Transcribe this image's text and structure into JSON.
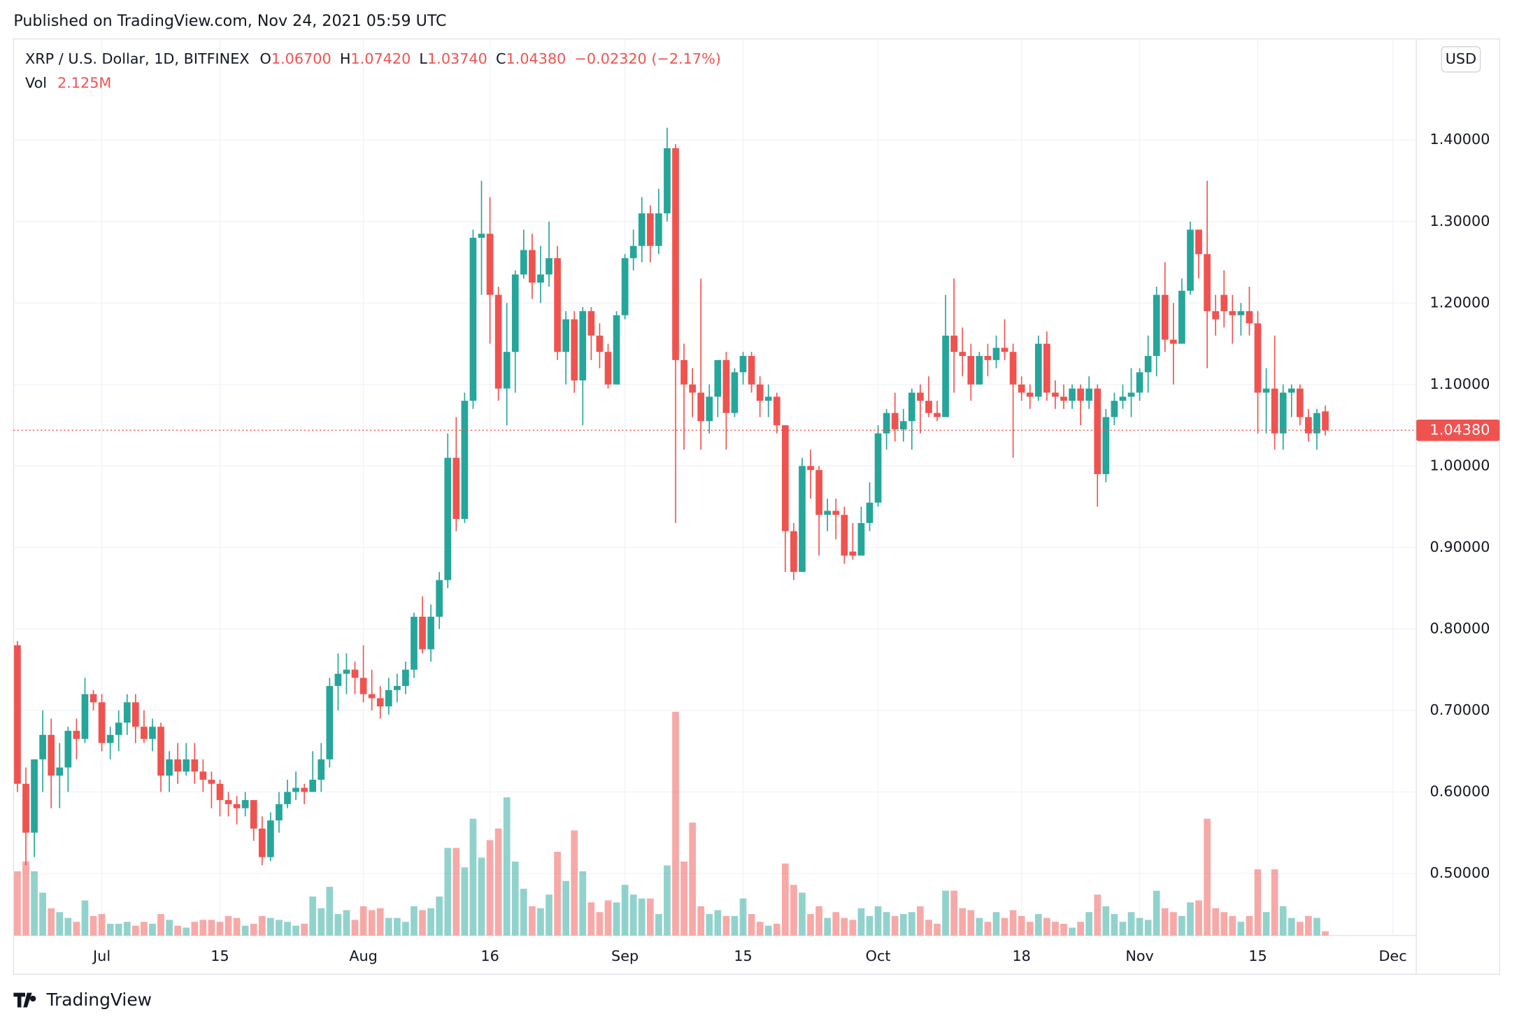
{
  "chart_data": {
    "type": "candlestick",
    "published": "Published on TradingView.com, Nov 24, 2021 05:59 UTC",
    "brand": "TradingView",
    "currency": "USD",
    "legend": {
      "symbol": "XRP / U.S. Dollar, 1D, BITFINEX",
      "o": "O",
      "open": "1.06700",
      "h": "H",
      "high": "1.07420",
      "l": "L",
      "low": "1.03740",
      "c": "C",
      "close": "1.04380",
      "change": "−0.02320 (−2.17%)",
      "vol": "Vol",
      "volume": "2.125M"
    },
    "up_color": "#26a69a",
    "down_color": "#ef5350",
    "x": [
      "06-21",
      "06-22",
      "06-23",
      "06-24",
      "06-25",
      "06-26",
      "06-27",
      "06-28",
      "06-29",
      "06-30",
      "07-01",
      "07-02",
      "07-03",
      "07-04",
      "07-05",
      "07-06",
      "07-07",
      "07-08",
      "07-09",
      "07-10",
      "07-11",
      "07-12",
      "07-13",
      "07-14",
      "07-15",
      "07-16",
      "07-17",
      "07-18",
      "07-19",
      "07-20",
      "07-21",
      "07-22",
      "07-23",
      "07-24",
      "07-25",
      "07-26",
      "07-27",
      "07-28",
      "07-29",
      "07-30",
      "07-31",
      "08-01",
      "08-02",
      "08-03",
      "08-04",
      "08-05",
      "08-06",
      "08-07",
      "08-08",
      "08-09",
      "08-10",
      "08-11",
      "08-12",
      "08-13",
      "08-14",
      "08-15",
      "08-16",
      "08-17",
      "08-18",
      "08-19",
      "08-20",
      "08-21",
      "08-22",
      "08-23",
      "08-24",
      "08-25",
      "08-26",
      "08-27",
      "08-28",
      "08-29",
      "08-30",
      "08-31",
      "09-01",
      "09-02",
      "09-03",
      "09-04",
      "09-05",
      "09-06",
      "09-07",
      "09-08",
      "09-09",
      "09-10",
      "09-11",
      "09-12",
      "09-13",
      "09-14",
      "09-15",
      "09-16",
      "09-17",
      "09-18",
      "09-19",
      "09-20",
      "09-21",
      "09-22",
      "09-23",
      "09-24",
      "09-25",
      "09-26",
      "09-27",
      "09-28",
      "09-29",
      "09-30",
      "10-01",
      "10-02",
      "10-03",
      "10-04",
      "10-05",
      "10-06",
      "10-07",
      "10-08",
      "10-09",
      "10-10",
      "10-11",
      "10-12",
      "10-13",
      "10-14",
      "10-15",
      "10-16",
      "10-17",
      "10-18",
      "10-19",
      "10-20",
      "10-21",
      "10-22",
      "10-23",
      "10-24",
      "10-25",
      "10-26",
      "10-27",
      "10-28",
      "10-29",
      "10-30",
      "10-31",
      "11-01",
      "11-02",
      "11-03",
      "11-04",
      "11-05",
      "11-06",
      "11-07",
      "11-08",
      "11-09",
      "11-10",
      "11-11",
      "11-12",
      "11-13",
      "11-14",
      "11-15",
      "11-16",
      "11-17",
      "11-18",
      "11-19",
      "11-20",
      "11-21",
      "11-22",
      "11-23"
    ],
    "open": [
      0.78,
      0.61,
      0.55,
      0.64,
      0.67,
      0.62,
      0.63,
      0.675,
      0.665,
      0.72,
      0.71,
      0.66,
      0.67,
      0.685,
      0.71,
      0.68,
      0.665,
      0.68,
      0.62,
      0.64,
      0.625,
      0.64,
      0.625,
      0.615,
      0.61,
      0.59,
      0.585,
      0.58,
      0.59,
      0.555,
      0.52,
      0.565,
      0.585,
      0.6,
      0.605,
      0.6,
      0.615,
      0.64,
      0.73,
      0.745,
      0.75,
      0.74,
      0.72,
      0.715,
      0.705,
      0.725,
      0.73,
      0.75,
      0.815,
      0.775,
      0.815,
      0.86,
      1.01,
      0.935,
      1.08,
      1.28,
      1.285,
      1.21,
      1.095,
      1.14,
      1.235,
      1.265,
      1.225,
      1.235,
      1.255,
      1.14,
      1.18,
      1.105,
      1.19,
      1.16,
      1.14,
      1.1,
      1.185,
      1.255,
      1.27,
      1.31,
      1.27,
      1.31,
      1.39,
      1.13,
      1.1,
      1.09,
      1.055,
      1.085,
      1.13,
      1.065,
      1.115,
      1.135,
      1.1,
      1.08,
      1.085,
      1.05,
      0.92,
      0.87,
      1.0,
      0.995,
      0.94,
      0.945,
      0.94,
      0.895,
      0.89,
      0.93,
      0.955,
      1.04,
      1.065,
      1.045,
      1.055,
      1.09,
      1.08,
      1.065,
      1.06,
      1.16,
      1.14,
      1.135,
      1.1,
      1.135,
      1.13,
      1.145,
      1.14,
      1.1,
      1.09,
      1.085,
      1.15,
      1.09,
      1.085,
      1.08,
      1.095,
      1.08,
      1.095,
      0.99,
      1.06,
      1.08,
      1.085,
      1.09,
      1.115,
      1.135,
      1.21,
      1.155,
      1.15,
      1.215,
      1.29,
      1.26,
      1.19,
      1.21,
      1.19,
      1.185,
      1.19,
      1.175,
      1.09,
      1.095,
      1.04,
      1.09,
      1.095,
      1.06,
      1.04,
      1.067
    ],
    "high": [
      0.785,
      0.63,
      0.64,
      0.7,
      0.69,
      0.66,
      0.68,
      0.69,
      0.74,
      0.725,
      0.72,
      0.68,
      0.7,
      0.72,
      0.72,
      0.7,
      0.69,
      0.685,
      0.65,
      0.66,
      0.66,
      0.66,
      0.64,
      0.625,
      0.615,
      0.6,
      0.595,
      0.6,
      0.59,
      0.57,
      0.575,
      0.6,
      0.615,
      0.625,
      0.61,
      0.65,
      0.66,
      0.74,
      0.77,
      0.77,
      0.76,
      0.78,
      0.75,
      0.73,
      0.74,
      0.745,
      0.76,
      0.82,
      0.84,
      0.83,
      0.87,
      1.04,
      1.06,
      1.09,
      1.29,
      1.35,
      1.33,
      1.22,
      1.2,
      1.24,
      1.29,
      1.285,
      1.27,
      1.3,
      1.27,
      1.19,
      1.19,
      1.195,
      1.195,
      1.175,
      1.15,
      1.19,
      1.26,
      1.29,
      1.33,
      1.32,
      1.34,
      1.415,
      1.395,
      1.15,
      1.12,
      1.23,
      1.1,
      1.13,
      1.14,
      1.12,
      1.14,
      1.14,
      1.11,
      1.1,
      1.09,
      1.05,
      0.93,
      1.01,
      1.02,
      1.0,
      0.96,
      0.96,
      0.95,
      0.93,
      0.95,
      0.98,
      1.05,
      1.07,
      1.09,
      1.07,
      1.095,
      1.1,
      1.11,
      1.08,
      1.21,
      1.23,
      1.17,
      1.15,
      1.14,
      1.15,
      1.16,
      1.18,
      1.15,
      1.11,
      1.1,
      1.16,
      1.165,
      1.105,
      1.1,
      1.1,
      1.1,
      1.11,
      1.1,
      1.07,
      1.09,
      1.1,
      1.12,
      1.12,
      1.16,
      1.22,
      1.25,
      1.2,
      1.23,
      1.3,
      1.29,
      1.35,
      1.21,
      1.24,
      1.21,
      1.2,
      1.22,
      1.19,
      1.12,
      1.16,
      1.1,
      1.1,
      1.1,
      1.07,
      1.07,
      1.0742
    ],
    "low": [
      0.6,
      0.51,
      0.52,
      0.6,
      0.58,
      0.58,
      0.6,
      0.64,
      0.66,
      0.7,
      0.65,
      0.64,
      0.65,
      0.67,
      0.66,
      0.66,
      0.65,
      0.6,
      0.6,
      0.61,
      0.62,
      0.61,
      0.6,
      0.58,
      0.57,
      0.57,
      0.56,
      0.57,
      0.54,
      0.51,
      0.515,
      0.55,
      0.58,
      0.59,
      0.585,
      0.6,
      0.6,
      0.63,
      0.7,
      0.72,
      0.72,
      0.71,
      0.7,
      0.69,
      0.695,
      0.71,
      0.72,
      0.74,
      0.77,
      0.76,
      0.8,
      0.85,
      0.92,
      0.93,
      1.07,
      1.21,
      1.15,
      1.08,
      1.05,
      1.09,
      1.23,
      1.205,
      1.2,
      1.22,
      1.13,
      1.1,
      1.09,
      1.05,
      1.13,
      1.12,
      1.095,
      1.1,
      1.18,
      1.24,
      1.25,
      1.25,
      1.26,
      1.3,
      0.93,
      1.02,
      1.06,
      1.02,
      1.04,
      1.06,
      1.02,
      1.06,
      1.1,
      1.09,
      1.06,
      1.06,
      1.04,
      0.87,
      0.86,
      0.87,
      0.96,
      0.89,
      0.92,
      0.91,
      0.88,
      0.885,
      0.89,
      0.92,
      0.95,
      1.02,
      1.03,
      1.03,
      1.02,
      1.04,
      1.06,
      1.055,
      1.06,
      1.09,
      1.11,
      1.08,
      1.1,
      1.11,
      1.12,
      1.13,
      1.01,
      1.08,
      1.07,
      1.08,
      1.08,
      1.07,
      1.07,
      1.07,
      1.05,
      1.07,
      0.95,
      0.98,
      1.05,
      1.07,
      1.06,
      1.08,
      1.09,
      1.11,
      1.14,
      1.1,
      1.15,
      1.21,
      1.23,
      1.12,
      1.16,
      1.17,
      1.15,
      1.16,
      1.16,
      1.04,
      1.04,
      1.02,
      1.02,
      1.06,
      1.05,
      1.03,
      1.02,
      1.0374
    ],
    "close": [
      0.61,
      0.55,
      0.64,
      0.67,
      0.62,
      0.63,
      0.675,
      0.665,
      0.72,
      0.71,
      0.66,
      0.67,
      0.685,
      0.71,
      0.68,
      0.665,
      0.68,
      0.62,
      0.64,
      0.625,
      0.64,
      0.625,
      0.615,
      0.61,
      0.59,
      0.585,
      0.58,
      0.59,
      0.555,
      0.52,
      0.565,
      0.585,
      0.6,
      0.605,
      0.6,
      0.615,
      0.64,
      0.73,
      0.745,
      0.75,
      0.74,
      0.72,
      0.715,
      0.705,
      0.725,
      0.73,
      0.75,
      0.815,
      0.775,
      0.815,
      0.86,
      1.01,
      0.935,
      1.08,
      1.28,
      1.285,
      1.21,
      1.095,
      1.14,
      1.235,
      1.265,
      1.225,
      1.235,
      1.255,
      1.14,
      1.18,
      1.105,
      1.19,
      1.16,
      1.14,
      1.1,
      1.185,
      1.255,
      1.27,
      1.31,
      1.27,
      1.31,
      1.39,
      1.13,
      1.1,
      1.09,
      1.055,
      1.085,
      1.13,
      1.065,
      1.115,
      1.135,
      1.1,
      1.08,
      1.085,
      1.05,
      0.92,
      0.87,
      1.0,
      0.995,
      0.94,
      0.945,
      0.94,
      0.89,
      0.89,
      0.93,
      0.955,
      1.04,
      1.065,
      1.045,
      1.055,
      1.09,
      1.08,
      1.065,
      1.06,
      1.16,
      1.14,
      1.135,
      1.1,
      1.135,
      1.13,
      1.145,
      1.14,
      1.1,
      1.09,
      1.085,
      1.15,
      1.09,
      1.085,
      1.08,
      1.095,
      1.08,
      1.095,
      0.99,
      1.06,
      1.08,
      1.085,
      1.09,
      1.115,
      1.135,
      1.21,
      1.155,
      1.15,
      1.215,
      1.29,
      1.26,
      1.19,
      1.18,
      1.19,
      1.185,
      1.19,
      1.175,
      1.09,
      1.095,
      1.04,
      1.09,
      1.095,
      1.06,
      1.04,
      1.065,
      1.0438
    ],
    "volume": [
      33,
      38,
      33,
      22,
      14,
      12,
      9,
      7,
      18,
      10,
      11,
      6,
      6,
      7,
      5,
      7,
      6,
      11,
      8,
      5,
      4,
      7,
      8,
      8,
      7,
      10,
      9,
      5,
      6,
      10,
      9,
      8,
      7,
      5,
      6,
      20,
      14,
      25,
      11,
      13,
      8,
      15,
      13,
      14,
      9,
      9,
      7,
      15,
      13,
      14,
      20,
      45,
      45,
      35,
      60,
      40,
      49,
      55,
      71,
      38,
      24,
      15,
      14,
      21,
      43,
      28,
      54,
      33,
      17,
      12,
      18,
      17,
      26,
      21,
      19,
      19,
      11,
      36,
      115,
      38,
      58,
      15,
      11,
      13,
      10,
      10,
      19,
      11,
      7,
      5,
      6,
      37,
      26,
      22,
      11,
      15,
      9,
      12,
      9,
      8,
      14,
      10,
      15,
      12,
      10,
      11,
      12,
      15,
      8,
      6,
      23,
      23,
      14,
      13,
      9,
      7,
      12,
      9,
      13,
      10,
      7,
      11,
      9,
      7,
      6,
      4,
      7,
      12,
      21,
      15,
      11,
      7,
      12,
      9,
      8,
      23,
      14,
      12,
      10,
      17,
      18,
      60,
      14,
      12,
      10,
      7,
      10,
      34,
      12,
      34,
      15,
      9,
      7,
      10,
      9,
      2.125
    ],
    "ylim": [
      0.4239,
      1.5241
    ],
    "yticks": [
      {
        "value": 0.5,
        "label": "0.50000"
      },
      {
        "value": 0.6,
        "label": "0.60000"
      },
      {
        "value": 0.7,
        "label": "0.70000"
      },
      {
        "value": 0.8,
        "label": "0.80000"
      },
      {
        "value": 0.9,
        "label": "0.90000"
      },
      {
        "value": 1.0,
        "label": "1.00000"
      },
      {
        "value": 1.1,
        "label": "1.10000"
      },
      {
        "value": 1.2,
        "label": "1.20000"
      },
      {
        "value": 1.3,
        "label": "1.30000"
      },
      {
        "value": 1.4,
        "label": "1.40000"
      }
    ],
    "xticks": [
      {
        "value": "07-01",
        "label": "Jul"
      },
      {
        "value": "07-15",
        "label": "15"
      },
      {
        "value": "08-01",
        "label": "Aug"
      },
      {
        "value": "08-16",
        "label": "16"
      },
      {
        "value": "09-01",
        "label": "Sep"
      },
      {
        "value": "09-15",
        "label": "15"
      },
      {
        "value": "10-01",
        "label": "Oct"
      },
      {
        "value": "10-18",
        "label": "18"
      },
      {
        "value": "11-01",
        "label": "Nov"
      },
      {
        "value": "11-15",
        "label": "15"
      },
      {
        "value": "12-01",
        "label": "Dec"
      }
    ],
    "last_price": {
      "value": 1.0438,
      "label": "1.04380"
    },
    "grid": true
  }
}
